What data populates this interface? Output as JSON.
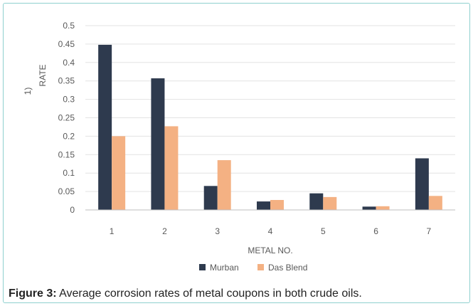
{
  "caption": {
    "label": "Figure 3:",
    "text": " Average corrosion rates of metal coupons in both crude oils."
  },
  "chart_data": {
    "type": "bar",
    "categories": [
      "1",
      "2",
      "3",
      "4",
      "5",
      "6",
      "7"
    ],
    "series": [
      {
        "name": "Murban",
        "color": "#2e3a4e",
        "values": [
          0.448,
          0.357,
          0.065,
          0.023,
          0.045,
          0.009,
          0.14
        ]
      },
      {
        "name": "Das Blend",
        "color": "#f4b183",
        "values": [
          0.2,
          0.227,
          0.135,
          0.027,
          0.035,
          0.01,
          0.038
        ]
      }
    ],
    "xlabel": "METAL NO.",
    "ylabel_prefix": "1)",
    "ylabel": "RATE",
    "ylim": [
      0,
      0.5
    ],
    "yticks": [
      "0",
      "0.05",
      "0.1",
      "0.15",
      "0.2",
      "0.25",
      "0.3",
      "0.35",
      "0.4",
      "0.45",
      "0.5"
    ],
    "grid": true,
    "legend_position": "bottom"
  }
}
